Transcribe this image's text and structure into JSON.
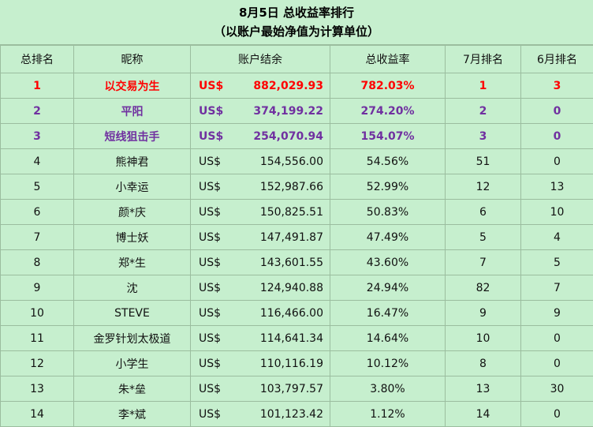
{
  "title": {
    "line1": "8月5日 总收益率排行",
    "line2": "（以账户最始净值为计算单位）"
  },
  "headers": [
    "总排名",
    "昵称",
    "账户结余",
    "总收益率",
    "7月排名",
    "6月排名"
  ],
  "rows": [
    {
      "rank": "1",
      "name": "以交易为生",
      "currency": "US$",
      "balance": "882,029.93",
      "return": "782.03%",
      "july": "1",
      "june": "3"
    },
    {
      "rank": "2",
      "name": "平阳",
      "currency": "US$",
      "balance": "374,199.22",
      "return": "274.20%",
      "july": "2",
      "june": "0"
    },
    {
      "rank": "3",
      "name": "短线狙击手",
      "currency": "US$",
      "balance": "254,070.94",
      "return": "154.07%",
      "july": "3",
      "june": "0"
    },
    {
      "rank": "4",
      "name": "熊神君",
      "currency": "US$",
      "balance": "154,556.00",
      "return": "54.56%",
      "july": "51",
      "june": "0"
    },
    {
      "rank": "5",
      "name": "小幸运",
      "currency": "US$",
      "balance": "152,987.66",
      "return": "52.99%",
      "july": "12",
      "june": "13"
    },
    {
      "rank": "6",
      "name": "颜*庆",
      "currency": "US$",
      "balance": "150,825.51",
      "return": "50.83%",
      "july": "6",
      "june": "10"
    },
    {
      "rank": "7",
      "name": "博士妖",
      "currency": "US$",
      "balance": "147,491.87",
      "return": "47.49%",
      "july": "5",
      "june": "4"
    },
    {
      "rank": "8",
      "name": "郑*生",
      "currency": "US$",
      "balance": "143,601.55",
      "return": "43.60%",
      "july": "7",
      "june": "5"
    },
    {
      "rank": "9",
      "name": "沈",
      "currency": "US$",
      "balance": "124,940.88",
      "return": "24.94%",
      "july": "82",
      "june": "7"
    },
    {
      "rank": "10",
      "name": "STEVE",
      "currency": "US$",
      "balance": "116,466.00",
      "return": "16.47%",
      "july": "9",
      "june": "9"
    },
    {
      "rank": "11",
      "name": "金罗针划太极道",
      "currency": "US$",
      "balance": "114,641.34",
      "return": "14.64%",
      "july": "10",
      "june": "0"
    },
    {
      "rank": "12",
      "name": "小学生",
      "currency": "US$",
      "balance": "110,116.19",
      "return": "10.12%",
      "july": "8",
      "june": "0"
    },
    {
      "rank": "13",
      "name": "朱*垒",
      "currency": "US$",
      "balance": "103,797.57",
      "return": "3.80%",
      "july": "13",
      "june": "30"
    },
    {
      "rank": "14",
      "name": "李*斌",
      "currency": "US$",
      "balance": "101,123.42",
      "return": "1.12%",
      "july": "14",
      "june": "0"
    }
  ],
  "colors": {
    "first": "#ff0000",
    "second_third": "#7030a0",
    "background": "#c6efce"
  }
}
